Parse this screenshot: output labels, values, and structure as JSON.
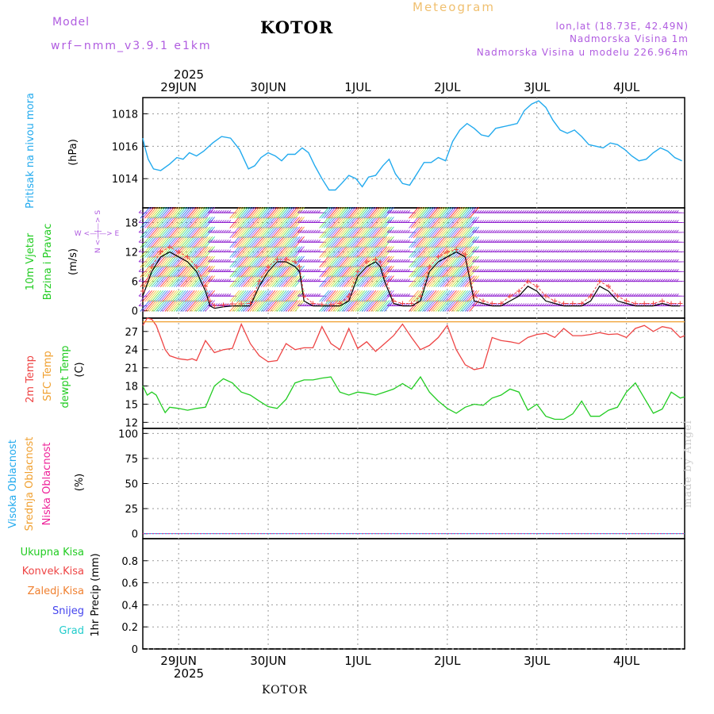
{
  "header": {
    "model_label": "Model",
    "model_name": "wrf−nmm_v3.9.1 e1km",
    "title": "KOTOR",
    "subtitle": "Meteogram",
    "lonlat": "lon,lat (18.73E, 42.49N)",
    "elevation": "Nadmorska Visina 1m",
    "model_elevation": "Nadmorska Visina u modelu 226.964m"
  },
  "footer": {
    "location": "KOTOR",
    "credit": "made by Angel"
  },
  "time_axis": {
    "year": "2025",
    "days": [
      "29JUN",
      "30JUN",
      "1JUL",
      "2JUL",
      "3JUL",
      "4JUL"
    ]
  },
  "panels": {
    "pressure": {
      "label": "Pritisak na nivou mora",
      "unit": "(hPa)"
    },
    "wind": {
      "label_1": "10m Vjetar",
      "label_2": "Brzina i Pravac",
      "unit": "(m/s)",
      "compass_ns": "N <—|—> S",
      "compass_we": "W <—|—> E"
    },
    "temperature": {
      "label_1": "2m Temp",
      "label_2": "SFC Temp",
      "label_3": "dewpt Temp",
      "unit": "(C)"
    },
    "clouds": {
      "label_1": "Visoka Oblacnost",
      "label_2": "Srednja Oblacnost",
      "label_3": "Niska Oblacnost",
      "unit": "(%)"
    },
    "precip": {
      "labels": [
        "Ukupna Kisa",
        "Konvek.Kisa",
        "Zaledj.Kisa",
        "Snijeg",
        "Grad"
      ],
      "unit": "1hr Precip (mm)"
    }
  },
  "colors": {
    "pressure": "#22aaee",
    "wind_label": "#22cc22",
    "temp2m": "#ee4444",
    "sfc": "#f0a030",
    "dewpt": "#22cc22",
    "high_cloud": "#22aaee",
    "mid_cloud": "#f0a030",
    "low_cloud": "#ee2299",
    "rain_total": "#22cc22",
    "rain_conv": "#ee4444",
    "rain_frozen": "#f08030",
    "snow": "#4444ee",
    "hail": "#22cccc",
    "accent_purple": "#b05ce0"
  },
  "chart_data": [
    {
      "type": "line",
      "title": "",
      "ylabel": "Pritisak na nivou mora (hPa)",
      "ylim": [
        1012.2,
        1019.0
      ],
      "yticks": [
        1014,
        1016,
        1018
      ],
      "grid": true,
      "x_days_range": [
        0.6,
        6.65
      ],
      "series": [
        {
          "name": "Pritisak na nivou mora",
          "x": [
            0.6,
            0.62,
            0.66,
            0.72,
            0.8,
            0.9,
            0.98,
            1.05,
            1.12,
            1.2,
            1.28,
            1.38,
            1.48,
            1.58,
            1.68,
            1.78,
            1.85,
            1.92,
            2.0,
            2.08,
            2.15,
            2.22,
            2.3,
            2.38,
            2.45,
            2.52,
            2.6,
            2.68,
            2.75,
            2.82,
            2.9,
            2.98,
            3.05,
            3.12,
            3.2,
            3.28,
            3.35,
            3.42,
            3.5,
            3.58,
            3.66,
            3.74,
            3.82,
            3.9,
            3.98,
            4.06,
            4.14,
            4.22,
            4.3,
            4.38,
            4.46,
            4.54,
            4.62,
            4.7,
            4.78,
            4.86,
            4.94,
            5.02,
            5.1,
            5.18,
            5.26,
            5.34,
            5.42,
            5.5,
            5.58,
            5.66,
            5.74,
            5.82,
            5.9,
            5.98,
            6.06,
            6.14,
            6.22,
            6.3,
            6.38,
            6.46,
            6.54,
            6.62
          ],
          "values": [
            1016.5,
            1016.0,
            1015.2,
            1014.6,
            1014.5,
            1014.9,
            1015.3,
            1015.2,
            1015.6,
            1015.4,
            1015.7,
            1016.2,
            1016.6,
            1016.5,
            1015.8,
            1014.6,
            1014.8,
            1015.3,
            1015.6,
            1015.4,
            1015.1,
            1015.5,
            1015.5,
            1015.9,
            1015.6,
            1014.8,
            1014.0,
            1013.3,
            1013.3,
            1013.7,
            1014.2,
            1014.0,
            1013.5,
            1014.1,
            1014.2,
            1014.8,
            1015.2,
            1014.3,
            1013.7,
            1013.6,
            1014.3,
            1015.0,
            1015.0,
            1015.3,
            1015.1,
            1016.3,
            1017.0,
            1017.4,
            1017.1,
            1016.7,
            1016.6,
            1017.1,
            1017.2,
            1017.3,
            1017.4,
            1018.2,
            1018.6,
            1018.8,
            1018.4,
            1017.6,
            1017.0,
            1016.8,
            1017.0,
            1016.6,
            1016.1,
            1016.0,
            1015.9,
            1016.2,
            1016.1,
            1015.8,
            1015.4,
            1015.1,
            1015.2,
            1015.6,
            1015.9,
            1015.7,
            1015.3,
            1015.1
          ]
        }
      ]
    },
    {
      "type": "line",
      "title": "",
      "ylabel": "10m Vjetar Brzina i Pravac (m/s)",
      "ylim": [
        -1.5,
        21
      ],
      "yticks": [
        0,
        6,
        12,
        18
      ],
      "grid": true,
      "x_days_range": [
        0.6,
        6.65
      ],
      "series": [
        {
          "name": "10m Vjetar",
          "x": [
            0.6,
            0.7,
            0.8,
            0.9,
            1.0,
            1.1,
            1.2,
            1.3,
            1.35,
            1.4,
            1.5,
            1.6,
            1.7,
            1.8,
            1.9,
            2.0,
            2.1,
            2.2,
            2.3,
            2.35,
            2.4,
            2.5,
            2.6,
            2.7,
            2.8,
            2.9,
            3.0,
            3.1,
            3.2,
            3.25,
            3.3,
            3.4,
            3.5,
            3.6,
            3.7,
            3.8,
            3.9,
            4.0,
            4.1,
            4.2,
            4.3,
            4.4,
            4.5,
            4.6,
            4.7,
            4.8,
            4.9,
            5.0,
            5.1,
            5.2,
            5.3,
            5.4,
            5.5,
            5.6,
            5.7,
            5.8,
            5.9,
            6.0,
            6.1,
            6.2,
            6.3,
            6.4,
            6.5,
            6.6
          ],
          "values": [
            3,
            8,
            11,
            12,
            11,
            10,
            8,
            4,
            1,
            0.5,
            0.8,
            1,
            1,
            1,
            5,
            8,
            10,
            10,
            9,
            8,
            2,
            1,
            1,
            1,
            1,
            2,
            7,
            9,
            10,
            9,
            6,
            1.5,
            1,
            1,
            2,
            8,
            10,
            11,
            12,
            11,
            2,
            1.5,
            1,
            1,
            2,
            3,
            5,
            4,
            2,
            1.5,
            1,
            1,
            1,
            2,
            5,
            4,
            2,
            1.5,
            1,
            1,
            1,
            1.5,
            1,
            1
          ]
        },
        {
          "name": "",
          "x": [
            0.6,
            0.7,
            0.8,
            0.9,
            1.0,
            1.1,
            1.2,
            1.3,
            1.35,
            1.4,
            1.5,
            1.6,
            1.7,
            1.8,
            1.9,
            2.0,
            2.1,
            2.2,
            2.3,
            2.35,
            2.4,
            2.5,
            2.6,
            2.7,
            2.8,
            2.9,
            3.0,
            3.1,
            3.2,
            3.25,
            3.3,
            3.4,
            3.5,
            3.6,
            3.7,
            3.8,
            3.9,
            4.0,
            4.1,
            4.2,
            4.3,
            4.4,
            4.5,
            4.6,
            4.7,
            4.8,
            4.9,
            5.0,
            5.1,
            5.2,
            5.3,
            5.4,
            5.5,
            5.6,
            5.7,
            5.8,
            5.9,
            6.0,
            6.1,
            6.2,
            6.3,
            6.4,
            6.5,
            6.6
          ],
          "values": [
            4,
            9,
            12,
            13,
            12,
            11,
            9,
            5,
            2,
            1,
            1.2,
            1.4,
            1.4,
            1.5,
            6,
            9,
            10.5,
            10.5,
            10,
            9,
            3,
            1.5,
            1.3,
            1.3,
            1.5,
            3,
            8,
            10,
            10.5,
            10,
            7,
            2,
            1.5,
            1.5,
            3,
            9,
            11,
            12,
            12.5,
            11.5,
            3,
            2,
            1.5,
            1.5,
            3,
            4,
            6,
            5,
            3,
            2,
            1.5,
            1.5,
            1.5,
            3,
            6,
            5,
            3,
            2,
            1.5,
            1.5,
            1.5,
            2,
            1.5,
            1.5
          ]
        }
      ]
    },
    {
      "type": "line",
      "title": "",
      "ylabel": "(C)",
      "ylim": [
        11,
        29.2
      ],
      "yticks": [
        12,
        15,
        18,
        21,
        24,
        27
      ],
      "grid": true,
      "x_days_range": [
        0.6,
        6.65
      ],
      "series": [
        {
          "name": "2m Temp",
          "x": [
            0.6,
            0.65,
            0.7,
            0.75,
            0.8,
            0.85,
            0.9,
            1.0,
            1.1,
            1.15,
            1.2,
            1.3,
            1.4,
            1.5,
            1.6,
            1.7,
            1.8,
            1.9,
            2.0,
            2.1,
            2.2,
            2.3,
            2.4,
            2.5,
            2.6,
            2.7,
            2.8,
            2.9,
            3.0,
            3.1,
            3.2,
            3.3,
            3.4,
            3.5,
            3.6,
            3.7,
            3.8,
            3.9,
            4.0,
            4.1,
            4.2,
            4.3,
            4.4,
            4.5,
            4.6,
            4.7,
            4.8,
            4.9,
            5.0,
            5.1,
            5.2,
            5.3,
            5.4,
            5.5,
            5.6,
            5.7,
            5.8,
            5.9,
            6.0,
            6.1,
            6.2,
            6.3,
            6.4,
            6.5,
            6.6,
            6.65
          ],
          "values": [
            28,
            29.5,
            29,
            28,
            26,
            24,
            23,
            22.5,
            22.3,
            22.5,
            22.2,
            25.5,
            23.5,
            24,
            24.2,
            28.2,
            25,
            23,
            22,
            22.2,
            25,
            24,
            24.3,
            24.3,
            27.8,
            25,
            24,
            27.5,
            24.2,
            25.3,
            23.7,
            25,
            26.3,
            28.2,
            26,
            24,
            24.7,
            26,
            28,
            24,
            21.5,
            20.7,
            21,
            26,
            25.5,
            25.3,
            25,
            26,
            26.5,
            26.7,
            26,
            27.5,
            26.3,
            26.3,
            26.5,
            26.8,
            26.5,
            26.6,
            26,
            27.5,
            28,
            27,
            27.8,
            27.5,
            26,
            26.3
          ]
        },
        {
          "name": "SFC Temp",
          "x": [
            0.6,
            6.65
          ],
          "values": [
            28.6,
            28.6
          ]
        },
        {
          "name": "dewpt Temp",
          "x": [
            0.6,
            0.65,
            0.7,
            0.75,
            0.8,
            0.85,
            0.9,
            1.0,
            1.1,
            1.2,
            1.3,
            1.4,
            1.5,
            1.6,
            1.7,
            1.8,
            1.9,
            2.0,
            2.1,
            2.2,
            2.3,
            2.4,
            2.5,
            2.6,
            2.7,
            2.8,
            2.9,
            3.0,
            3.1,
            3.2,
            3.3,
            3.4,
            3.5,
            3.6,
            3.7,
            3.8,
            3.9,
            4.0,
            4.1,
            4.2,
            4.3,
            4.4,
            4.5,
            4.6,
            4.7,
            4.8,
            4.9,
            5.0,
            5.1,
            5.2,
            5.3,
            5.4,
            5.5,
            5.6,
            5.7,
            5.8,
            5.9,
            6.0,
            6.1,
            6.2,
            6.3,
            6.4,
            6.5,
            6.6,
            6.65
          ],
          "values": [
            18,
            16.5,
            17,
            16.5,
            15,
            13.6,
            14.5,
            14.3,
            14,
            14.3,
            14.5,
            18,
            19.2,
            18.5,
            17,
            16.5,
            15.5,
            14.6,
            14.3,
            15.8,
            18.5,
            19,
            19,
            19.3,
            19.5,
            17,
            16.5,
            17,
            16.8,
            16.5,
            17,
            17.5,
            18.4,
            17.5,
            19.5,
            17,
            15.5,
            14.3,
            13.5,
            14.5,
            15,
            14.8,
            16,
            16.5,
            17.5,
            17,
            14,
            15,
            13,
            12.5,
            12.5,
            13.4,
            15.5,
            13,
            13,
            14,
            14.5,
            17,
            18.5,
            16,
            13.5,
            14.2,
            17,
            16,
            16.2
          ]
        }
      ]
    },
    {
      "type": "line",
      "title": "",
      "ylabel": "(%)",
      "ylim": [
        -5,
        105
      ],
      "yticks": [
        0,
        25,
        50,
        75,
        100
      ],
      "grid": true,
      "series": [
        {
          "name": "Visoka Oblacnost",
          "values": [
            0,
            0
          ]
        },
        {
          "name": "Srednja Oblacnost",
          "values": [
            0,
            0
          ]
        },
        {
          "name": "Niska Oblacnost",
          "values": [
            0,
            0
          ]
        }
      ]
    },
    {
      "type": "bar",
      "title": "",
      "ylabel": "1hr Precip (mm)",
      "ylim": [
        0,
        1.0
      ],
      "yticks": [
        0,
        0.2,
        0.4,
        0.6,
        0.8
      ],
      "grid": true,
      "series": [
        {
          "name": "Ukupna Kisa",
          "values": []
        },
        {
          "name": "Konvek.Kisa",
          "values": []
        },
        {
          "name": "Zaledj.Kisa",
          "values": []
        },
        {
          "name": "Snijeg",
          "values": []
        },
        {
          "name": "Grad",
          "values": []
        }
      ]
    }
  ]
}
